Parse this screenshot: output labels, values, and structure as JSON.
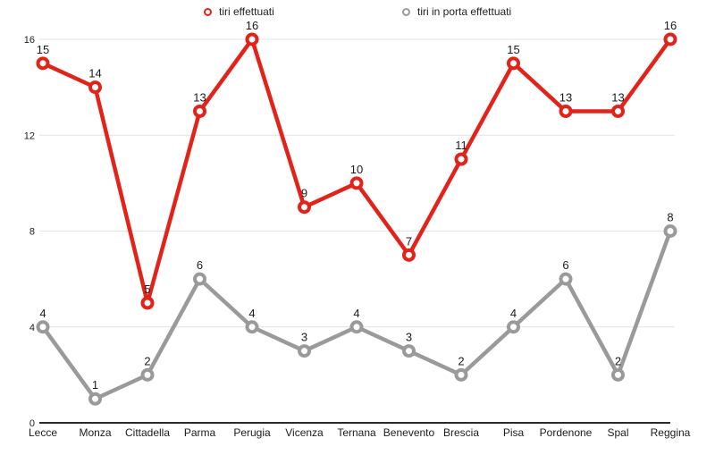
{
  "legend": [
    {
      "label": "tiri effettuati",
      "color": "#e2231a"
    },
    {
      "label": "tiri in porta effettuati",
      "color": "#9a9a9a"
    }
  ],
  "chart_data": {
    "type": "line",
    "title": "",
    "xlabel": "",
    "ylabel": "",
    "categories": [
      "Lecce",
      "Monza",
      "Cittadella",
      "Parma",
      "Perugia",
      "Vicenza",
      "Ternana",
      "Benevento",
      "Brescia",
      "Pisa",
      "Pordenone",
      "Spal",
      "Reggina"
    ],
    "series": [
      {
        "name": "tiri effettuati",
        "color": "#e2231a",
        "values": [
          15,
          14,
          5,
          13,
          16,
          9,
          10,
          7,
          11,
          15,
          13,
          13,
          16
        ]
      },
      {
        "name": "tiri in porta effettuati",
        "color": "#9a9a9a",
        "values": [
          4,
          1,
          2,
          6,
          4,
          3,
          4,
          3,
          2,
          4,
          6,
          2,
          8
        ]
      }
    ],
    "yticks": [
      0,
      4,
      8,
      12,
      16
    ],
    "ylim": [
      0,
      16
    ],
    "grid": true,
    "legend_position": "top",
    "point_labels": true,
    "colors": {
      "gridline": "#e4e4e4",
      "axis": "#2b2b2b",
      "label": "#1c1c1c"
    }
  }
}
